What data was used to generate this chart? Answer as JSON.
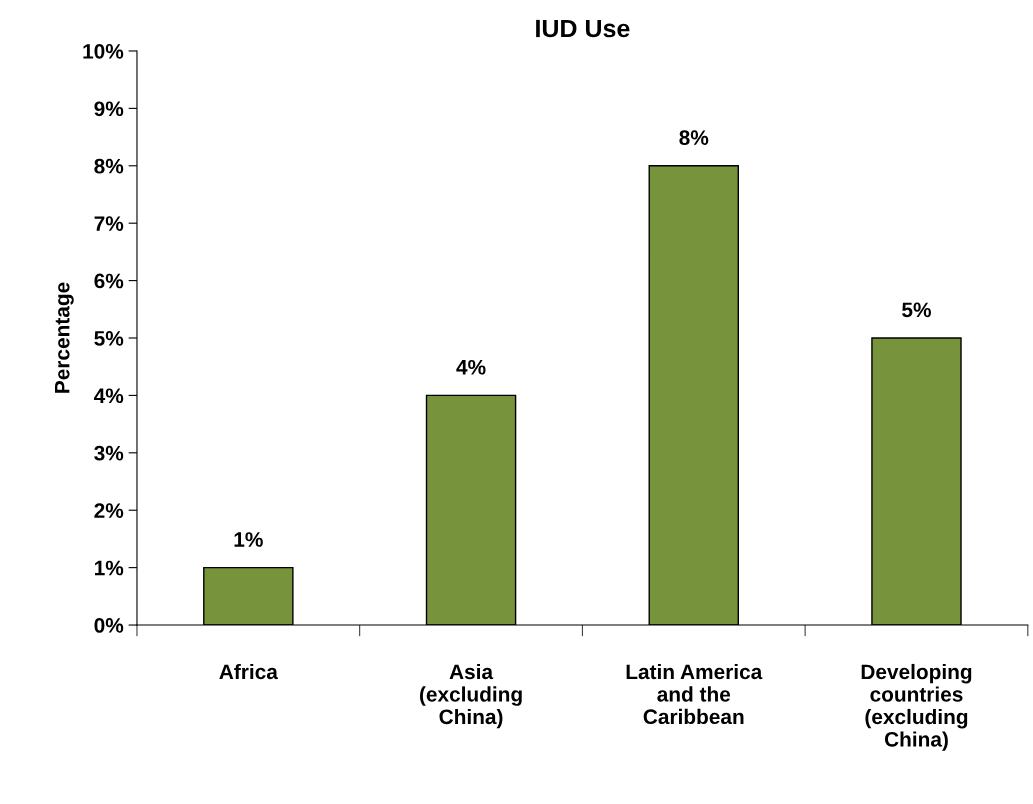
{
  "chart_data": {
    "type": "bar",
    "title": "IUD Use",
    "ylabel": "Percentage",
    "categories": [
      "Africa",
      "Asia\n(excluding\nChina)",
      "Latin America\nand the\nCaribbean",
      "Developing\ncountries\n(excluding\nChina)"
    ],
    "values": [
      1,
      4,
      8,
      5
    ],
    "color": "#77933c",
    "value_labels": [
      "1%",
      "4%",
      "8%",
      "5%"
    ],
    "ylim": [
      0,
      10
    ],
    "yticks": [
      {
        "value": 0,
        "label": "0%"
      },
      {
        "value": 1,
        "label": "1%"
      },
      {
        "value": 2,
        "label": "2%"
      },
      {
        "value": 3,
        "label": "3%"
      },
      {
        "value": 4,
        "label": "4%"
      },
      {
        "value": 5,
        "label": "5%"
      },
      {
        "value": 6,
        "label": "6%"
      },
      {
        "value": 7,
        "label": "7%"
      },
      {
        "value": 8,
        "label": "8%"
      },
      {
        "value": 9,
        "label": "9%"
      },
      {
        "value": 10,
        "label": "10%"
      }
    ],
    "grid": false
  }
}
